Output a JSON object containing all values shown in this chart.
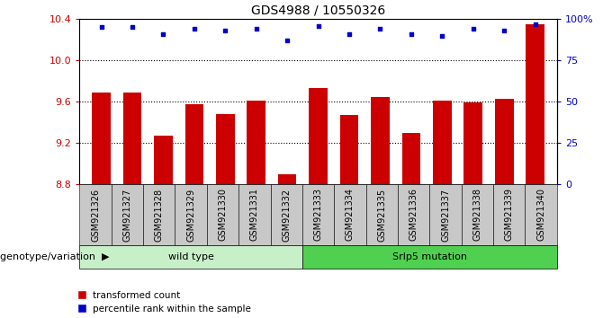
{
  "title": "GDS4988 / 10550326",
  "samples": [
    "GSM921326",
    "GSM921327",
    "GSM921328",
    "GSM921329",
    "GSM921330",
    "GSM921331",
    "GSM921332",
    "GSM921333",
    "GSM921334",
    "GSM921335",
    "GSM921336",
    "GSM921337",
    "GSM921338",
    "GSM921339",
    "GSM921340"
  ],
  "bar_values": [
    9.69,
    9.69,
    9.27,
    9.58,
    9.48,
    9.61,
    8.9,
    9.73,
    9.47,
    9.65,
    9.3,
    9.61,
    9.59,
    9.63,
    10.35
  ],
  "dot_values": [
    95,
    95,
    91,
    94,
    93,
    94,
    87,
    96,
    91,
    94,
    91,
    90,
    94,
    93,
    97
  ],
  "bar_color": "#cc0000",
  "dot_color": "#0000cc",
  "ylim_left": [
    8.8,
    10.4
  ],
  "ylim_right": [
    0,
    100
  ],
  "yticks_left": [
    8.8,
    9.2,
    9.6,
    10.0,
    10.4
  ],
  "yticks_right": [
    0,
    25,
    50,
    75,
    100
  ],
  "grid_yticks": [
    9.2,
    9.6,
    10.0
  ],
  "n_wild_type": 7,
  "wild_type_label": "wild type",
  "mutation_label": "Srlp5 mutation",
  "genotype_label": "genotype/variation",
  "legend_bar": "transformed count",
  "legend_dot": "percentile rank within the sample",
  "wild_type_color": "#c8f0c8",
  "mutation_color": "#50d050",
  "background_color": "#ffffff",
  "tick_bg_color": "#c8c8c8",
  "xlabel_fontsize": 7,
  "ylabel_fontsize": 8,
  "title_fontsize": 10
}
